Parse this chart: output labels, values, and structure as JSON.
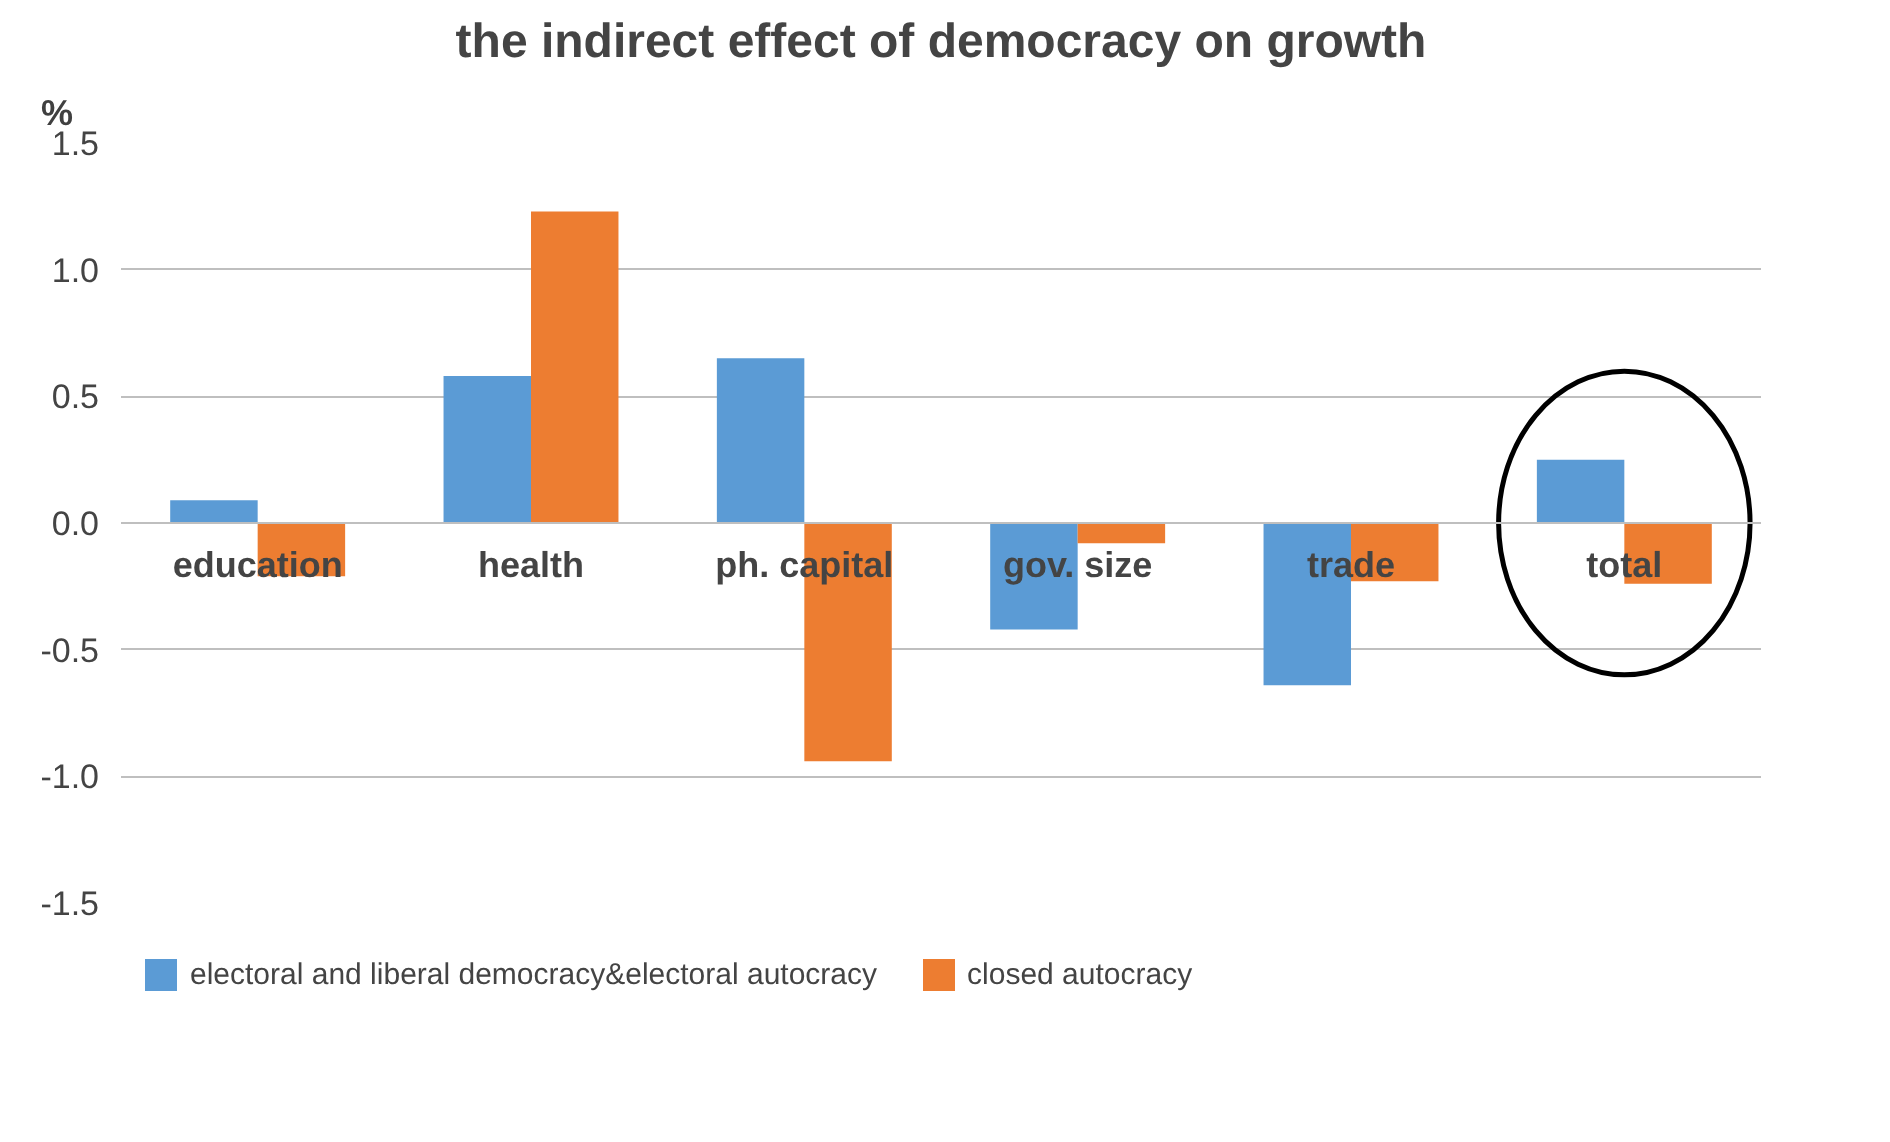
{
  "chart_data": {
    "type": "bar",
    "title": "the indirect effect of democracy on growth",
    "ylabel": "%",
    "categories": [
      "education",
      "health",
      "ph. capital",
      "gov. size",
      "trade",
      "total"
    ],
    "series": [
      {
        "name": "electoral and liberal democracy&electoral autocracy",
        "color": "#5b9bd5",
        "values": [
          0.09,
          0.58,
          0.65,
          -0.42,
          -0.64,
          0.25
        ]
      },
      {
        "name": "closed autocracy",
        "color": "#ed7d31",
        "values": [
          -0.21,
          1.23,
          -0.94,
          -0.08,
          -0.23,
          -0.24
        ]
      }
    ],
    "ylim": [
      -1.5,
      1.5
    ],
    "yticks": [
      {
        "value": -1.5,
        "label": "-1.5"
      },
      {
        "value": -1.0,
        "label": "-1.0"
      },
      {
        "value": -0.5,
        "label": "-0.5"
      },
      {
        "value": 0,
        "label": "0.0"
      },
      {
        "value": 0.5,
        "label": "0.5"
      },
      {
        "value": 1.0,
        "label": "1.0"
      },
      {
        "value": 1.5,
        "label": "1.5"
      }
    ],
    "grid": "y",
    "legend": "bottom"
  }
}
